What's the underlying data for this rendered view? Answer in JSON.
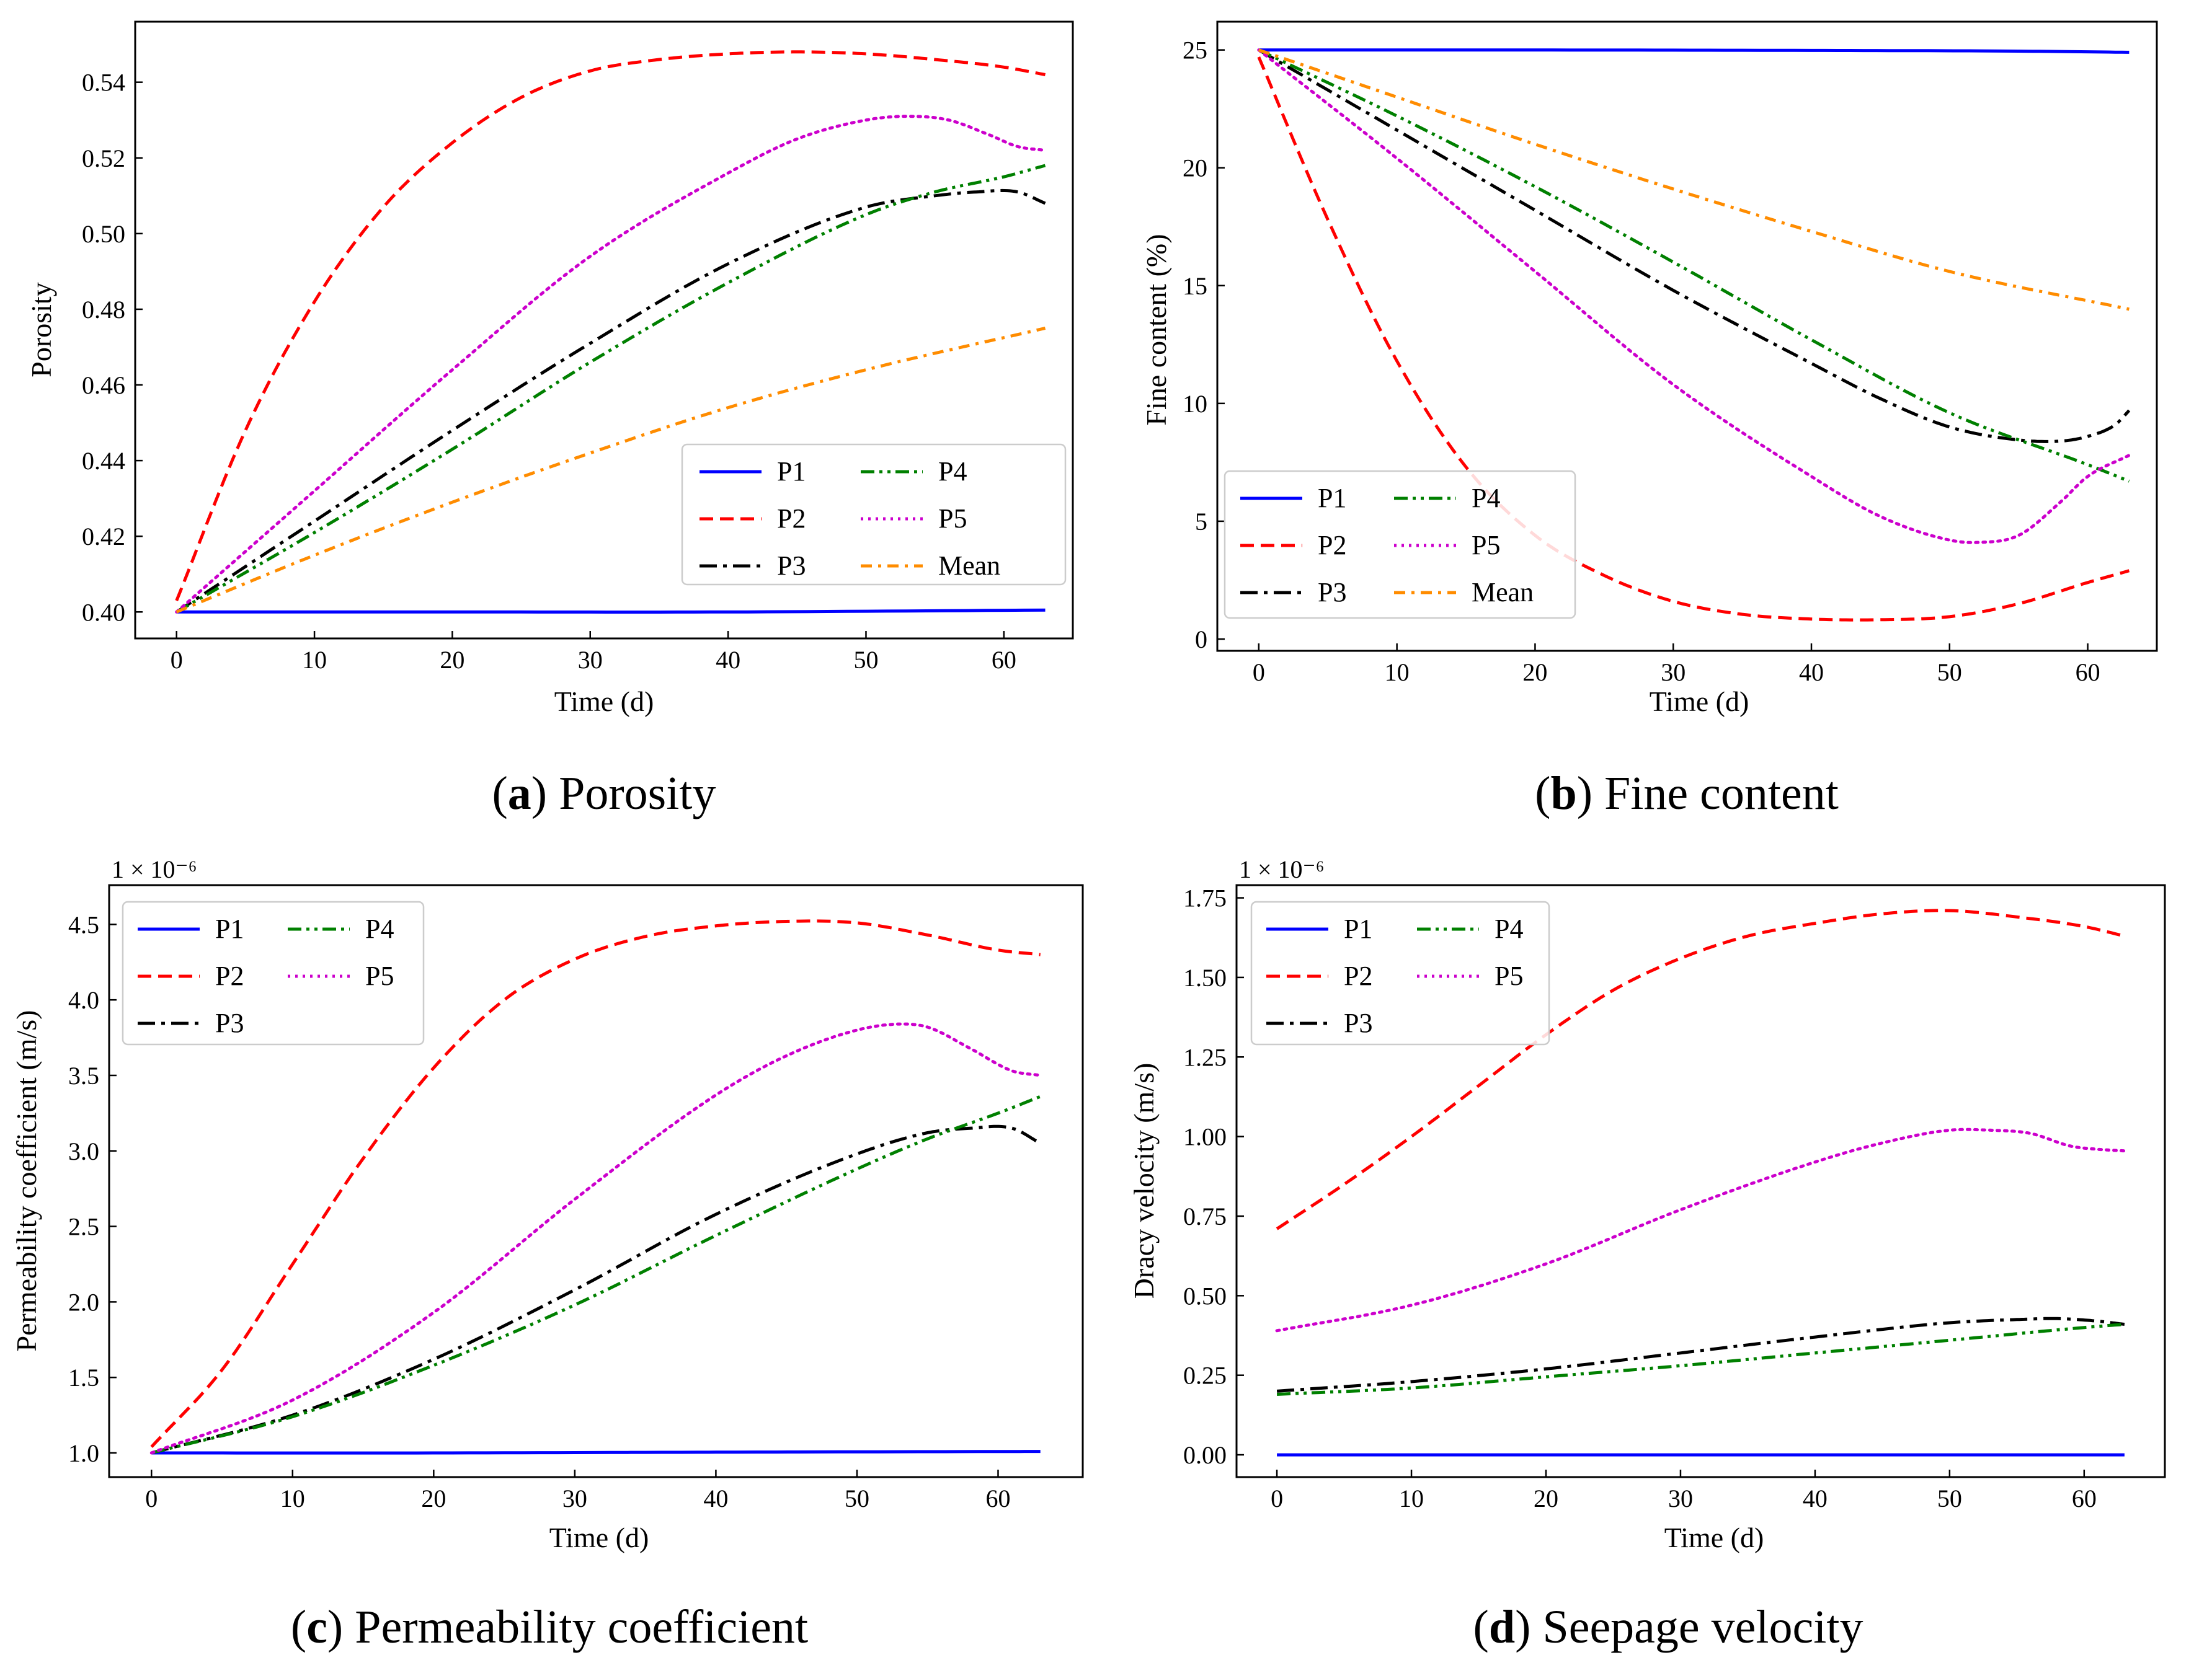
{
  "colors": {
    "P1": "#0000ff",
    "P2": "#ff0000",
    "P3": "#000000",
    "P4": "#008000",
    "P5": "#cc00cc",
    "Mean": "#ff8c00"
  },
  "chart_data": [
    {
      "id": "a",
      "type": "line",
      "caption_letter": "a",
      "caption_text": "Porosity",
      "xlabel": "Time (d)",
      "ylabel": "Porosity",
      "xlim": [
        -3,
        65
      ],
      "ylim": [
        0.393,
        0.556
      ],
      "xticks": [
        0,
        10,
        20,
        30,
        40,
        50,
        60
      ],
      "yticks": [
        0.4,
        0.42,
        0.44,
        0.46,
        0.48,
        0.5,
        0.52,
        0.54
      ],
      "ytick_decimals": 2,
      "multiplier": "",
      "legend": {
        "position": "lower-right",
        "entries": [
          "P1",
          "P2",
          "P3",
          "P4",
          "P5",
          "Mean"
        ]
      },
      "series": [
        {
          "name": "P1",
          "style": "solid",
          "x": [
            0,
            20,
            40,
            63
          ],
          "y": [
            0.4,
            0.4,
            0.4,
            0.4005
          ]
        },
        {
          "name": "P2",
          "style": "dashed",
          "x": [
            0,
            5,
            10,
            15,
            20,
            25,
            30,
            35,
            40,
            45,
            50,
            55,
            60,
            63
          ],
          "y": [
            0.403,
            0.448,
            0.482,
            0.507,
            0.524,
            0.536,
            0.543,
            0.546,
            0.5475,
            0.548,
            0.5475,
            0.546,
            0.544,
            0.542
          ]
        },
        {
          "name": "P3",
          "style": "dashdot",
          "x": [
            0,
            10,
            20,
            30,
            40,
            50,
            55,
            58,
            61,
            63
          ],
          "y": [
            0.4,
            0.424,
            0.448,
            0.471,
            0.492,
            0.507,
            0.51,
            0.511,
            0.511,
            0.508
          ]
        },
        {
          "name": "P4",
          "style": "dashdotdot",
          "x": [
            0,
            10,
            20,
            30,
            40,
            50,
            55,
            60,
            63
          ],
          "y": [
            0.4,
            0.421,
            0.443,
            0.466,
            0.487,
            0.505,
            0.511,
            0.515,
            0.518
          ]
        },
        {
          "name": "P5",
          "style": "dotted",
          "x": [
            0,
            10,
            20,
            30,
            40,
            45,
            50,
            53,
            56,
            59,
            61,
            63
          ],
          "y": [
            0.4,
            0.432,
            0.464,
            0.494,
            0.516,
            0.525,
            0.53,
            0.531,
            0.53,
            0.526,
            0.523,
            0.522
          ]
        },
        {
          "name": "Mean",
          "style": "dashdotmean",
          "x": [
            0,
            10,
            20,
            30,
            40,
            50,
            63
          ],
          "y": [
            0.4,
            0.415,
            0.429,
            0.442,
            0.454,
            0.464,
            0.475
          ]
        }
      ]
    },
    {
      "id": "b",
      "type": "line",
      "caption_letter": "b",
      "caption_text": "Fine content",
      "xlabel": "Time (d)",
      "ylabel": "Fine content (%)",
      "xlim": [
        -3,
        65
      ],
      "ylim": [
        -0.5,
        26.2
      ],
      "xticks": [
        0,
        10,
        20,
        30,
        40,
        50,
        60
      ],
      "yticks": [
        0,
        5,
        10,
        15,
        20,
        25
      ],
      "ytick_decimals": 0,
      "multiplier": "",
      "legend": {
        "position": "lower-left",
        "entries": [
          "P1",
          "P2",
          "P3",
          "P4",
          "P5",
          "Mean"
        ]
      },
      "series": [
        {
          "name": "P1",
          "style": "solid",
          "x": [
            0,
            20,
            40,
            55,
            63
          ],
          "y": [
            25,
            25,
            24.98,
            24.95,
            24.9
          ]
        },
        {
          "name": "P2",
          "style": "dashed",
          "x": [
            0,
            5,
            10,
            15,
            20,
            25,
            30,
            35,
            40,
            45,
            50,
            55,
            60,
            63
          ],
          "y": [
            24.7,
            17.8,
            11.8,
            7.3,
            4.4,
            2.7,
            1.6,
            1.05,
            0.85,
            0.82,
            0.95,
            1.5,
            2.4,
            2.9
          ]
        },
        {
          "name": "P3",
          "style": "dashdot",
          "x": [
            0,
            10,
            20,
            30,
            40,
            45,
            50,
            55,
            58,
            60,
            62,
            63
          ],
          "y": [
            25,
            21.6,
            18.2,
            14.8,
            11.7,
            10.2,
            9.0,
            8.45,
            8.4,
            8.6,
            9.1,
            9.7
          ]
        },
        {
          "name": "P4",
          "style": "dashdotdot",
          "x": [
            0,
            10,
            20,
            30,
            40,
            50,
            60,
            63
          ],
          "y": [
            25,
            22.2,
            19.2,
            16.0,
            12.7,
            9.6,
            7.4,
            6.7
          ]
        },
        {
          "name": "P5",
          "style": "dotted",
          "x": [
            0,
            10,
            20,
            30,
            40,
            45,
            50,
            52,
            55,
            58,
            60,
            63
          ],
          "y": [
            25,
            20.4,
            15.6,
            10.8,
            6.9,
            5.2,
            4.2,
            4.1,
            4.4,
            5.8,
            6.9,
            7.8
          ]
        },
        {
          "name": "Mean",
          "style": "dashdotmean",
          "x": [
            0,
            10,
            20,
            30,
            40,
            50,
            63
          ],
          "y": [
            25,
            23.0,
            21.0,
            19.1,
            17.3,
            15.6,
            14.0
          ]
        }
      ]
    },
    {
      "id": "c",
      "type": "line",
      "caption_letter": "c",
      "caption_text": "Permeability coefficient",
      "xlabel": "Time (d)",
      "ylabel": "Permeability coefficient (m/s)",
      "xlim": [
        -3,
        66
      ],
      "ylim": [
        0.84,
        4.76
      ],
      "xticks": [
        0,
        10,
        20,
        30,
        40,
        50,
        60
      ],
      "yticks": [
        1.0,
        1.5,
        2.0,
        2.5,
        3.0,
        3.5,
        4.0,
        4.5
      ],
      "ytick_decimals": 1,
      "multiplier": "1 × 10⁻⁶",
      "legend": {
        "position": "top-left",
        "entries": [
          "P1",
          "P2",
          "P3",
          "P4",
          "P5"
        ]
      },
      "series": [
        {
          "name": "P1",
          "style": "solid",
          "x": [
            0,
            20,
            40,
            63
          ],
          "y": [
            1.0,
            1.0,
            1.005,
            1.01
          ]
        },
        {
          "name": "P2",
          "style": "dashed",
          "x": [
            0,
            5,
            10,
            15,
            20,
            25,
            30,
            35,
            40,
            45,
            50,
            55,
            60,
            63
          ],
          "y": [
            1.04,
            1.55,
            2.25,
            2.95,
            3.55,
            4.0,
            4.27,
            4.42,
            4.49,
            4.52,
            4.51,
            4.43,
            4.33,
            4.3
          ]
        },
        {
          "name": "P3",
          "style": "dashdot",
          "x": [
            0,
            10,
            20,
            30,
            40,
            50,
            55,
            58,
            61,
            63
          ],
          "y": [
            1.0,
            1.25,
            1.62,
            2.08,
            2.58,
            2.98,
            3.12,
            3.15,
            3.15,
            3.05
          ]
        },
        {
          "name": "P4",
          "style": "dashdotdot",
          "x": [
            0,
            10,
            20,
            30,
            40,
            50,
            55,
            60,
            63
          ],
          "y": [
            1.0,
            1.24,
            1.58,
            1.98,
            2.44,
            2.88,
            3.08,
            3.25,
            3.36
          ]
        },
        {
          "name": "P5",
          "style": "dotted",
          "x": [
            0,
            10,
            20,
            30,
            40,
            45,
            50,
            53,
            55,
            58,
            61,
            63
          ],
          "y": [
            1.0,
            1.35,
            1.93,
            2.68,
            3.37,
            3.63,
            3.8,
            3.84,
            3.82,
            3.68,
            3.53,
            3.5
          ]
        }
      ]
    },
    {
      "id": "d",
      "type": "line",
      "caption_letter": "d",
      "caption_text": "Seepage velocity",
      "xlabel": "Time (d)",
      "ylabel": "Dracy velocity (m/s)",
      "xlim": [
        -3,
        66
      ],
      "ylim": [
        -0.07,
        1.79
      ],
      "xticks": [
        0,
        10,
        20,
        30,
        40,
        50,
        60
      ],
      "yticks": [
        0.0,
        0.25,
        0.5,
        0.75,
        1.0,
        1.25,
        1.5,
        1.75
      ],
      "ytick_decimals": 2,
      "multiplier": "1 × 10⁻⁶",
      "legend": {
        "position": "top-left",
        "entries": [
          "P1",
          "P2",
          "P3",
          "P4",
          "P5"
        ]
      },
      "series": [
        {
          "name": "P1",
          "style": "solid",
          "x": [
            0,
            30,
            63
          ],
          "y": [
            0.0,
            0.0,
            0.0
          ]
        },
        {
          "name": "P2",
          "style": "dashed",
          "x": [
            0,
            5,
            10,
            15,
            20,
            25,
            30,
            35,
            40,
            45,
            50,
            55,
            60,
            63
          ],
          "y": [
            0.71,
            0.85,
            1.0,
            1.16,
            1.32,
            1.46,
            1.56,
            1.63,
            1.67,
            1.7,
            1.71,
            1.69,
            1.66,
            1.63
          ]
        },
        {
          "name": "P3",
          "style": "dashdot",
          "x": [
            0,
            10,
            20,
            30,
            40,
            50,
            55,
            58,
            61,
            63
          ],
          "y": [
            0.2,
            0.23,
            0.27,
            0.32,
            0.37,
            0.415,
            0.425,
            0.428,
            0.42,
            0.41
          ]
        },
        {
          "name": "P4",
          "style": "dashdotdot",
          "x": [
            0,
            10,
            20,
            30,
            40,
            50,
            60,
            63
          ],
          "y": [
            0.19,
            0.21,
            0.245,
            0.28,
            0.32,
            0.36,
            0.4,
            0.41
          ]
        },
        {
          "name": "P5",
          "style": "dotted",
          "x": [
            0,
            10,
            20,
            30,
            40,
            45,
            50,
            53,
            56,
            59,
            61,
            63
          ],
          "y": [
            0.39,
            0.47,
            0.6,
            0.77,
            0.92,
            0.98,
            1.02,
            1.02,
            1.01,
            0.97,
            0.96,
            0.955
          ]
        }
      ]
    }
  ]
}
